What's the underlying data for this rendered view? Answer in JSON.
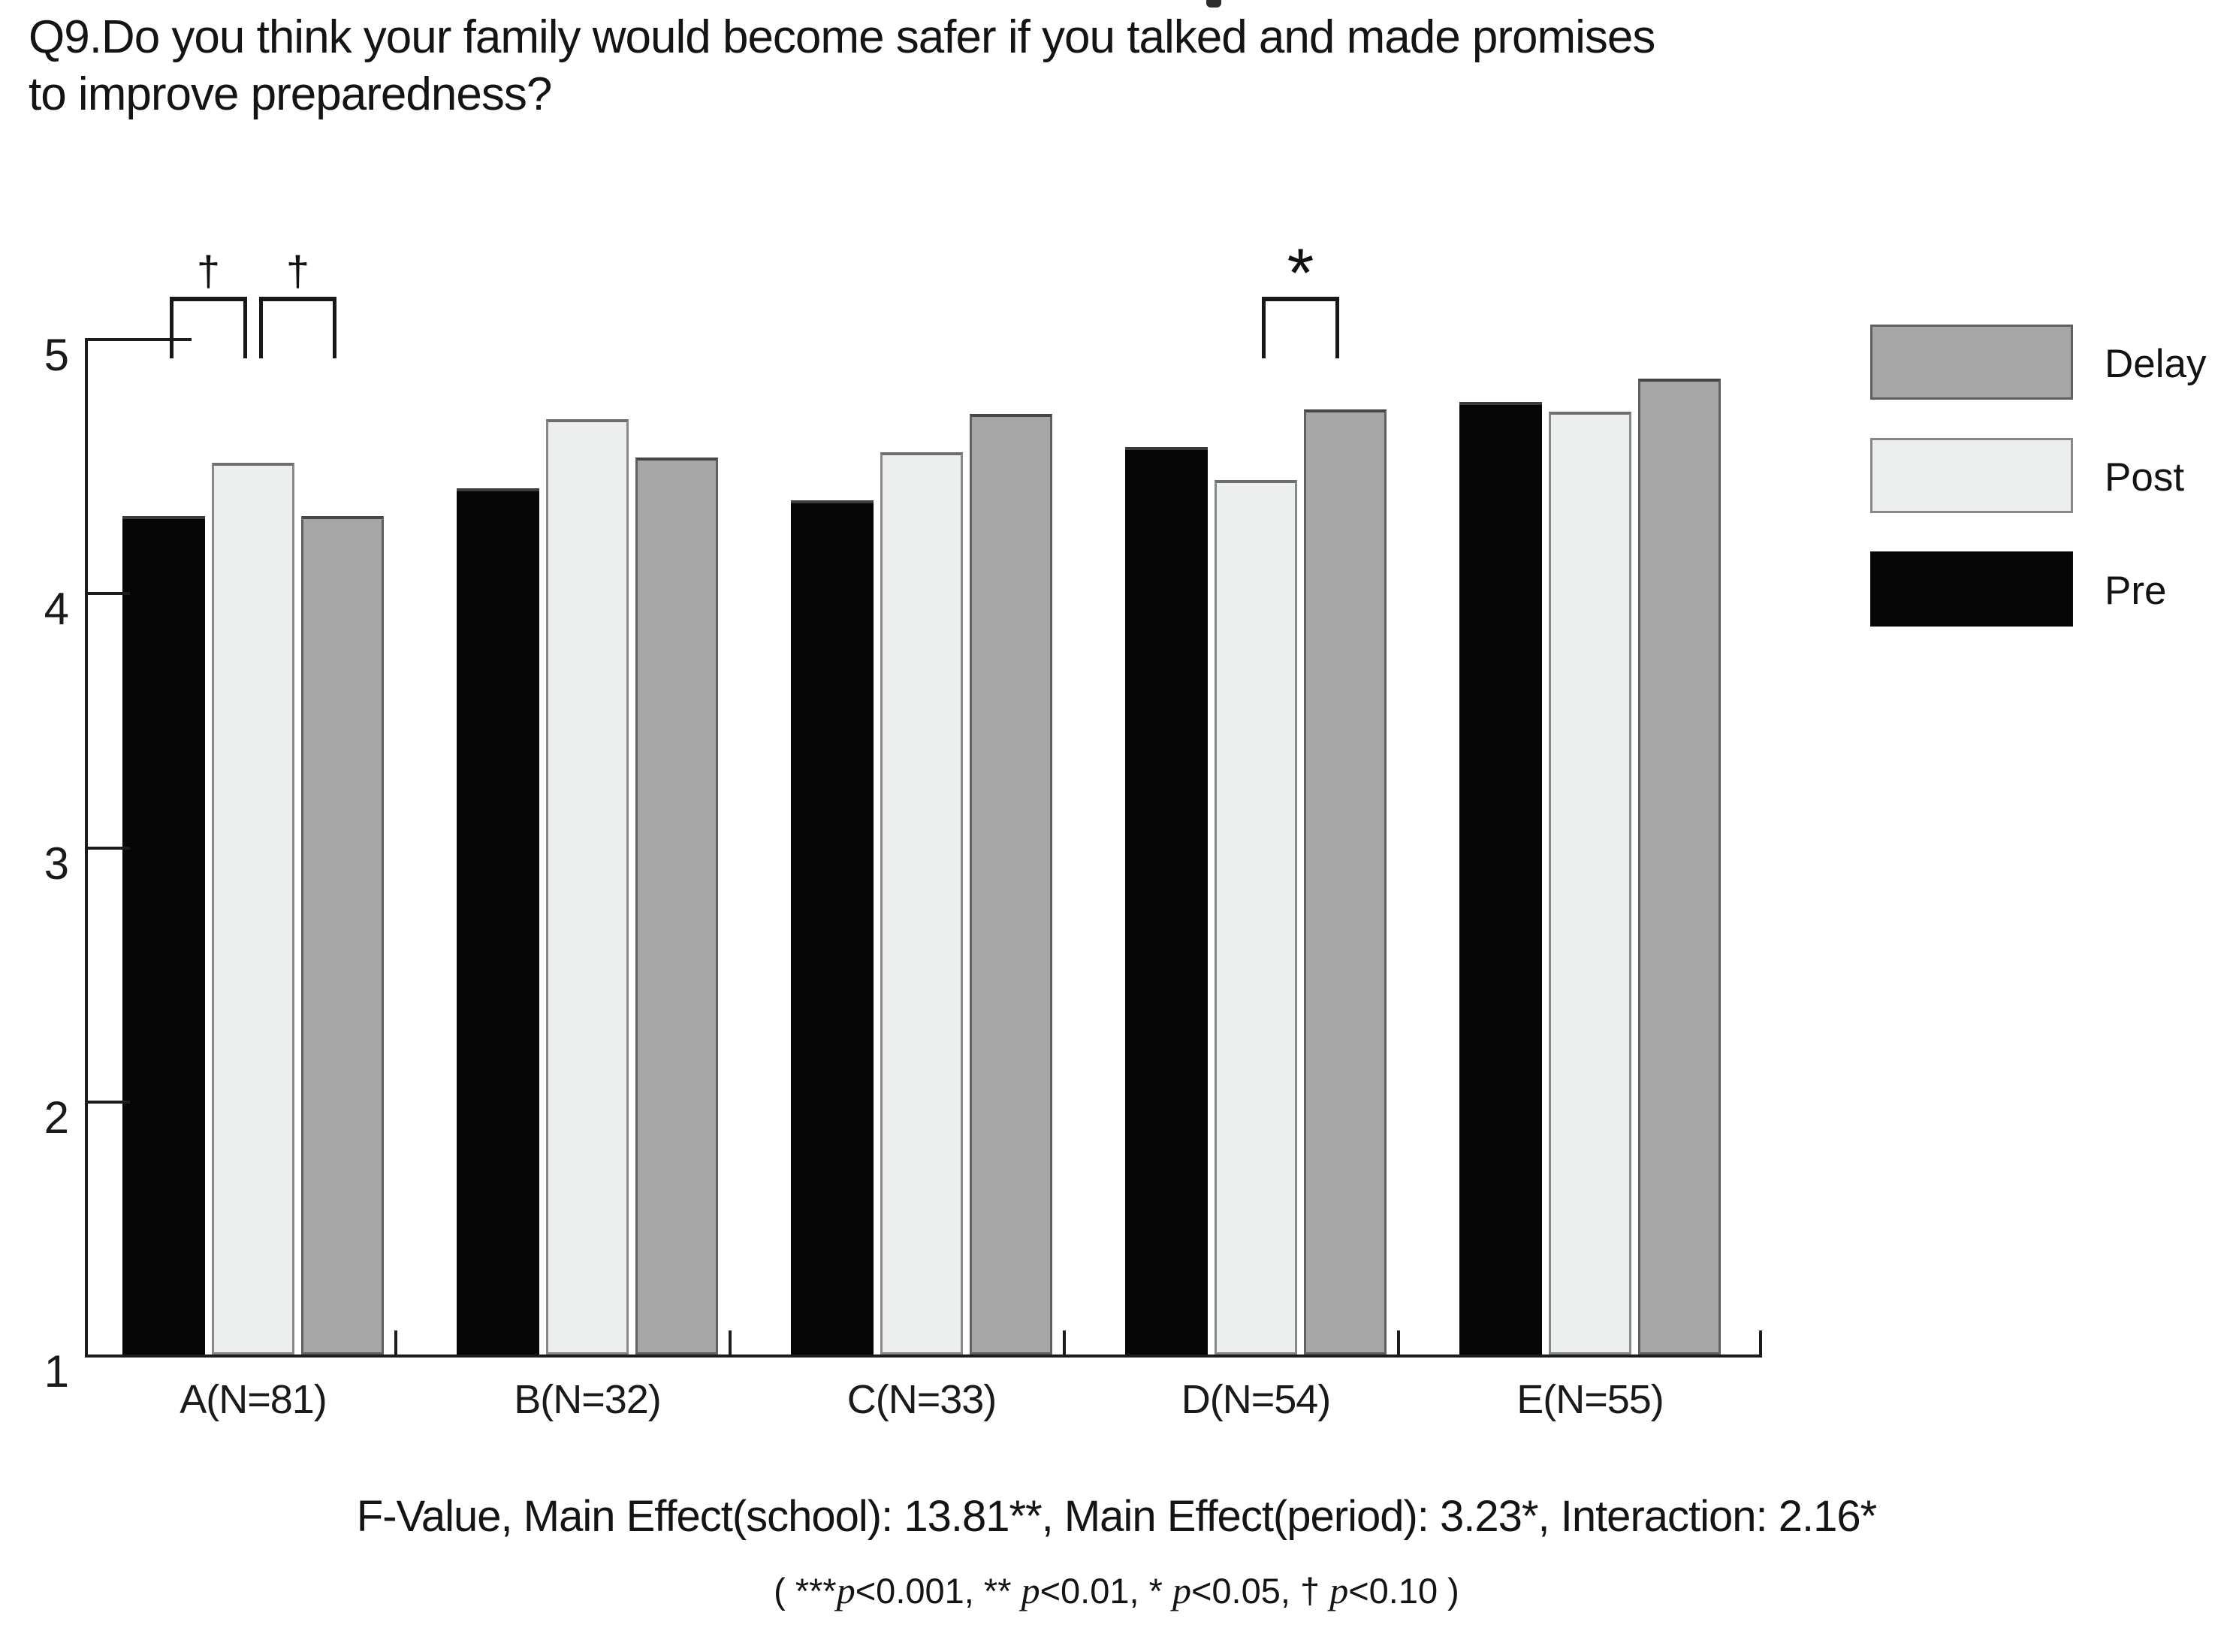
{
  "title": {
    "line1": "Q9.Do you think your family would become safer if you talked and made promises",
    "line2": "to improve preparedness?"
  },
  "chart_data": {
    "type": "bar",
    "title": "Q9.Do you think your family would become safer if you talked and made promises to improve preparedness?",
    "categories": [
      "A(N=81)",
      "B(N=32)",
      "C(N=33)",
      "D(N=54)",
      "E(N=55)"
    ],
    "series": [
      {
        "name": "Pre",
        "color": "#060606",
        "border": "",
        "top_edge": "#3a3a3a",
        "values": [
          4.3,
          4.41,
          4.36,
          4.57,
          4.75
        ]
      },
      {
        "name": "Post",
        "color": "#ecefee",
        "border": "#85898a",
        "top_edge": "#6f6f6f",
        "values": [
          4.51,
          4.68,
          4.55,
          4.44,
          4.71
        ]
      },
      {
        "name": "Delay",
        "color": "#a6a6a6",
        "border": "#606060",
        "top_edge": "#464646",
        "values": [
          4.3,
          4.53,
          4.7,
          4.72,
          4.84
        ]
      }
    ],
    "ylim": [
      1,
      5
    ],
    "yticks": [
      5,
      4,
      3,
      2,
      1
    ],
    "grid": false,
    "legend_position": "right",
    "legend_order": [
      "Delay",
      "Post",
      "Pre"
    ],
    "annotations": [
      {
        "symbol": "†",
        "group": 0,
        "from_series": "Pre",
        "to_series": "Post"
      },
      {
        "symbol": "†",
        "group": 0,
        "from_series": "Post",
        "to_series": "Delay"
      },
      {
        "symbol": "*",
        "group": 3,
        "from_series": "Post",
        "to_series": "Delay"
      }
    ]
  },
  "footer": {
    "fvalue_line": "F-Value, Main Effect(school): 13.81**, Main Effect(period): 3.23*, Interaction: 2.16*",
    "pvalue_segments": [
      {
        "text": "( ***",
        "italic": false
      },
      {
        "text": "p",
        "italic": true
      },
      {
        "text": "<0.001,  ** ",
        "italic": false
      },
      {
        "text": "p",
        "italic": true
      },
      {
        "text": "<0.01, * ",
        "italic": false
      },
      {
        "text": "p",
        "italic": true
      },
      {
        "text": "<0.05,  † ",
        "italic": false
      },
      {
        "text": "p",
        "italic": true
      },
      {
        "text": "<0.10 )",
        "italic": false
      }
    ]
  }
}
